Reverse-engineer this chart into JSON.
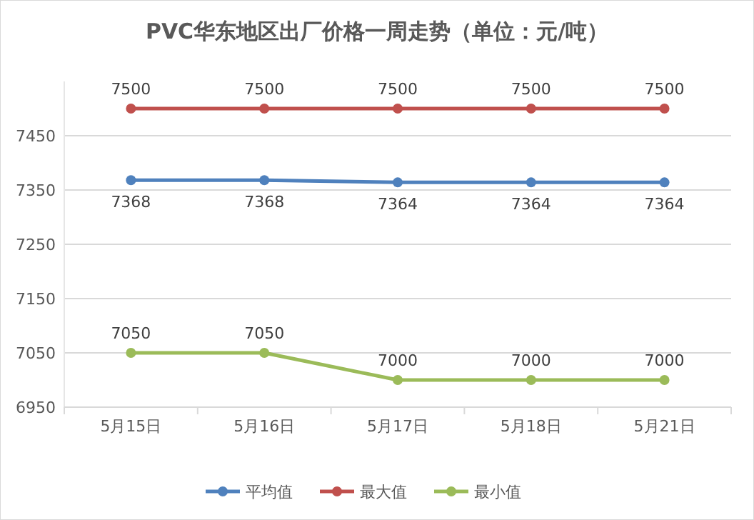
{
  "chart_data": {
    "type": "line",
    "title": "PVC华东地区出厂价格一周走势（单位：元/吨）",
    "categories": [
      "5月15日",
      "5月16日",
      "5月17日",
      "5月18日",
      "5月21日"
    ],
    "series": [
      {
        "name": "平均值",
        "color": "#4f81bd",
        "values": [
          7368,
          7368,
          7364,
          7364,
          7364
        ]
      },
      {
        "name": "最大值",
        "color": "#c0504d",
        "values": [
          7500,
          7500,
          7500,
          7500,
          7500
        ]
      },
      {
        "name": "最小值",
        "color": "#9bbb59",
        "values": [
          7050,
          7050,
          7000,
          7000,
          7000
        ]
      }
    ],
    "ylim": [
      6950,
      7550
    ],
    "yticks": [
      6950,
      7050,
      7150,
      7250,
      7350,
      7450
    ],
    "grid": "y",
    "legend": "bottom",
    "marker": "circle",
    "line_style": "solid",
    "data_labels": true
  }
}
